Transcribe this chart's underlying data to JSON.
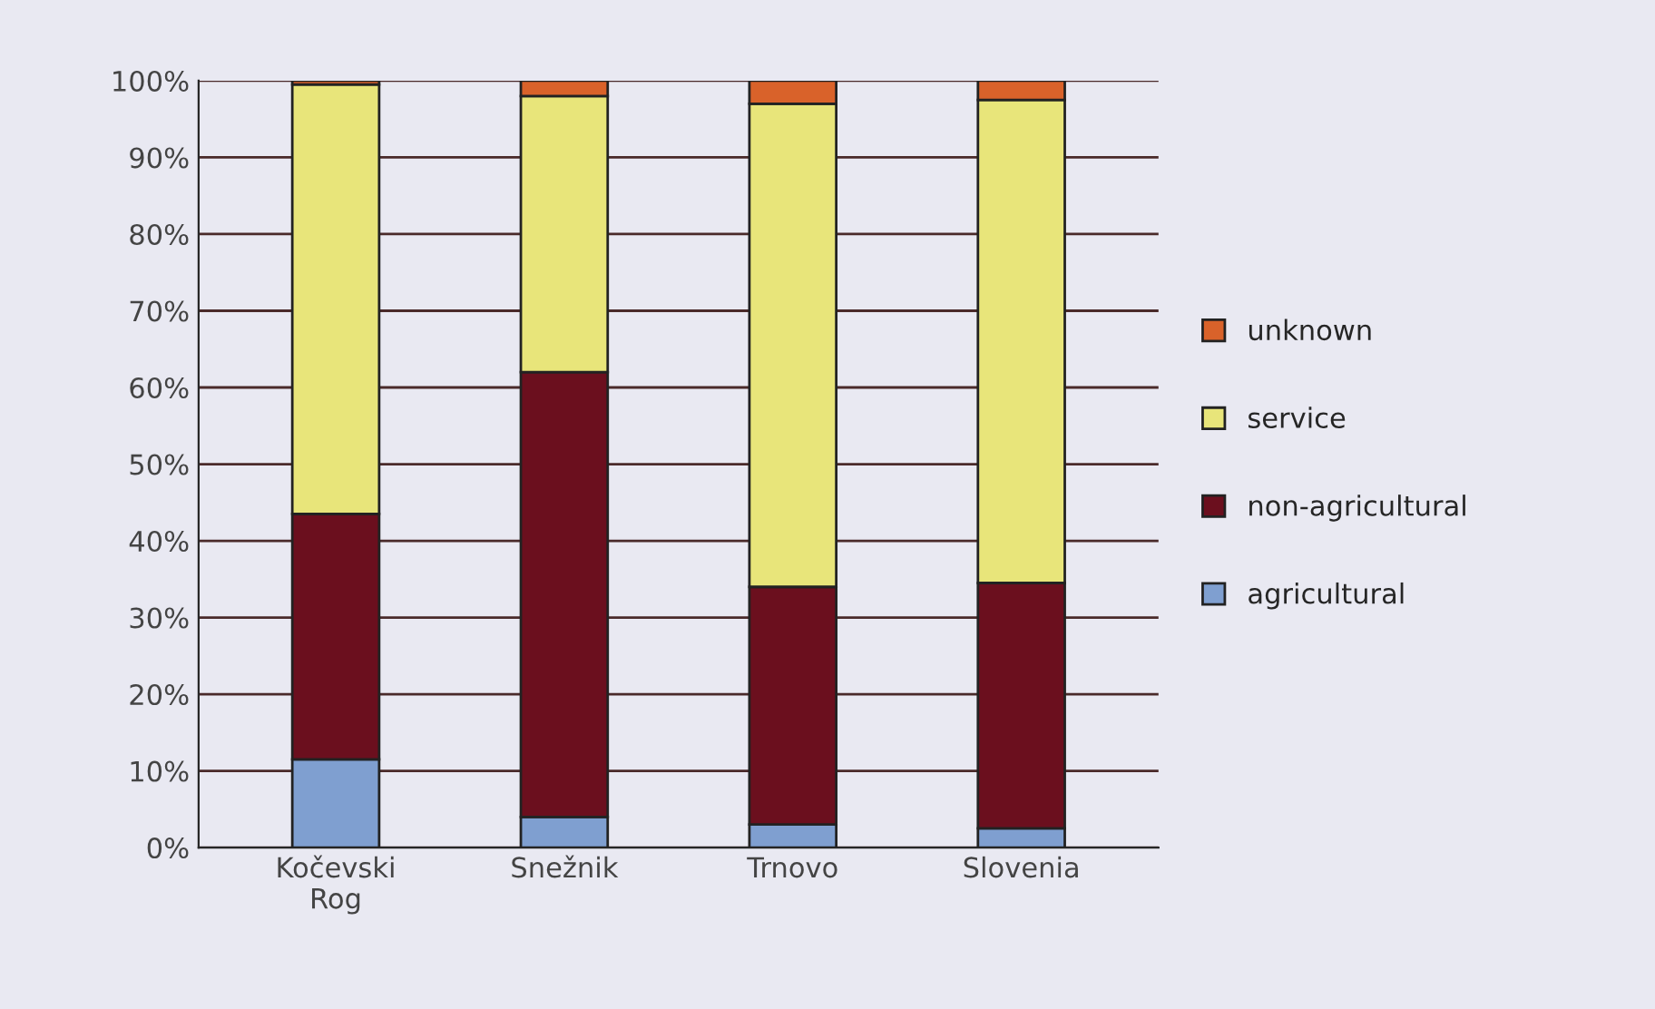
{
  "chart_data": {
    "type": "bar",
    "stacked": true,
    "categories": [
      "Kočevski\nRog",
      "Snežnik",
      "Trnovo",
      "Slovenia"
    ],
    "series": [
      {
        "name": "agricultural",
        "color": "#7f9fd0",
        "values": [
          11.5,
          4,
          3,
          2.5
        ]
      },
      {
        "name": "non-agricultural",
        "color": "#6b0f1e",
        "values": [
          32,
          58,
          31,
          32
        ]
      },
      {
        "name": "service",
        "color": "#e8e57a",
        "values": [
          56,
          36,
          63,
          63
        ]
      },
      {
        "name": "unknown",
        "color": "#d9622a",
        "values": [
          0.5,
          2,
          3,
          2.5
        ]
      }
    ],
    "ylim": [
      0,
      100
    ],
    "yticks": [
      {
        "value": 0,
        "label": "0%"
      },
      {
        "value": 10,
        "label": "10%"
      },
      {
        "value": 20,
        "label": "20%"
      },
      {
        "value": 30,
        "label": "30%"
      },
      {
        "value": 40,
        "label": "40%"
      },
      {
        "value": 50,
        "label": "50%"
      },
      {
        "value": 60,
        "label": "60%"
      },
      {
        "value": 70,
        "label": "70%"
      },
      {
        "value": 80,
        "label": "80%"
      },
      {
        "value": 90,
        "label": "90%"
      },
      {
        "value": 100,
        "label": "100%"
      }
    ],
    "grid": "y",
    "legend": "right"
  }
}
